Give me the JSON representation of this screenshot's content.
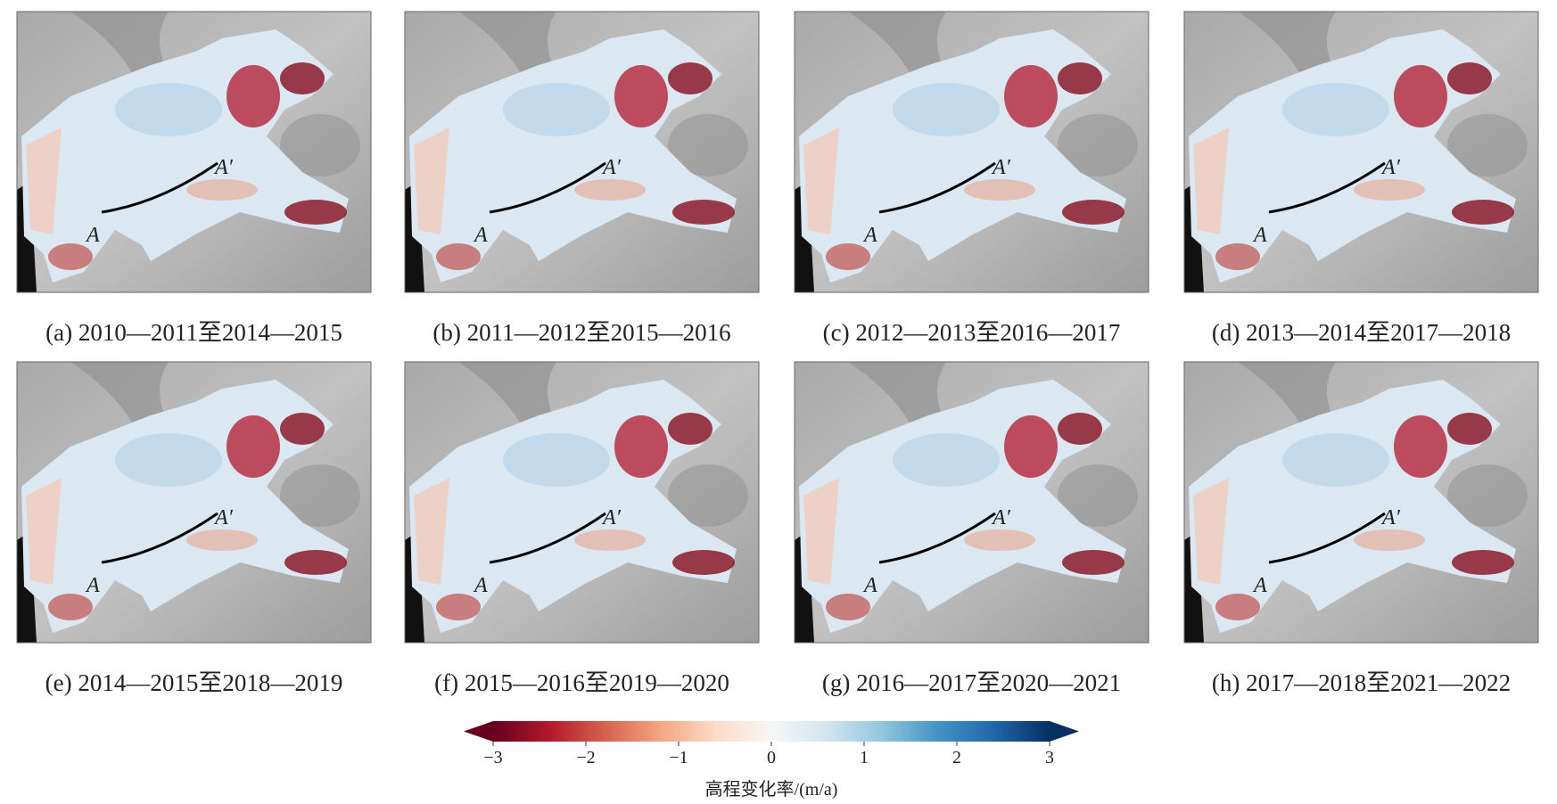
{
  "panels": [
    {
      "caption": "(a) 2010—2011至2014—2015"
    },
    {
      "caption": "(b) 2011—2012至2015—2016"
    },
    {
      "caption": "(c) 2012—2013至2016—2017"
    },
    {
      "caption": "(d) 2013—2014至2017—2018"
    },
    {
      "caption": "(e) 2014—2015至2018—2019"
    },
    {
      "caption": "(f) 2015—2016至2019—2020"
    },
    {
      "caption": "(g) 2016—2017至2020—2021"
    },
    {
      "caption": "(h) 2017—2018至2021—2022"
    }
  ],
  "profile_labels": {
    "start": "A",
    "end": "A′"
  },
  "colorbar": {
    "label": "高程变化率/(m/a)",
    "lim": [
      -3,
      3
    ],
    "ticks": [
      {
        "value": -3,
        "label": "−3"
      },
      {
        "value": -2,
        "label": "−2"
      },
      {
        "value": -1,
        "label": "−1"
      },
      0,
      1,
      2,
      3
    ],
    "colors": [
      "#67001f",
      "#b2182b",
      "#d6604d",
      "#f4a582",
      "#fddbc7",
      "#f7f7f7",
      "#d1e5f0",
      "#92c5de",
      "#4393c3",
      "#2166ac",
      "#053061"
    ]
  }
}
